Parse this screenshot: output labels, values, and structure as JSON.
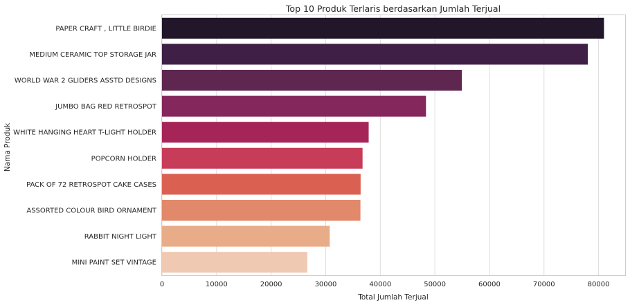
{
  "chart_data": {
    "type": "bar",
    "orientation": "horizontal",
    "title": "Top 10 Produk Terlaris berdasarkan Jumlah Terjual",
    "xlabel": "Total Jumlah Terjual",
    "ylabel": "Nama Produk",
    "categories": [
      "PAPER CRAFT , LITTLE BIRDIE",
      "MEDIUM CERAMIC TOP STORAGE JAR",
      "WORLD WAR 2 GLIDERS ASSTD DESIGNS",
      "JUMBO BAG RED RETROSPOT",
      "WHITE HANGING HEART T-LIGHT HOLDER",
      "POPCORN HOLDER",
      "PACK OF 72 RETROSPOT CAKE CASES",
      "ASSORTED COLOUR BIRD ORNAMENT",
      "RABBIT NIGHT LIGHT",
      "MINI PAINT SET VINTAGE"
    ],
    "values": [
      80995,
      78033,
      54951,
      48375,
      37872,
      36749,
      36396,
      36362,
      30739,
      26633
    ],
    "colors": [
      "#21162a",
      "#3f1f45",
      "#5f2750",
      "#84275c",
      "#a62559",
      "#c73c59",
      "#da6152",
      "#e2886b",
      "#e9ac89",
      "#efc9b2"
    ],
    "xlim": [
      0,
      85000
    ],
    "xticks": [
      0,
      10000,
      20000,
      30000,
      40000,
      50000,
      60000,
      70000,
      80000
    ],
    "xtick_labels": [
      "0",
      "10000",
      "20000",
      "30000",
      "40000",
      "50000",
      "60000",
      "70000",
      "80000"
    ],
    "grid": true,
    "style": "seaborn-whitegrid"
  }
}
